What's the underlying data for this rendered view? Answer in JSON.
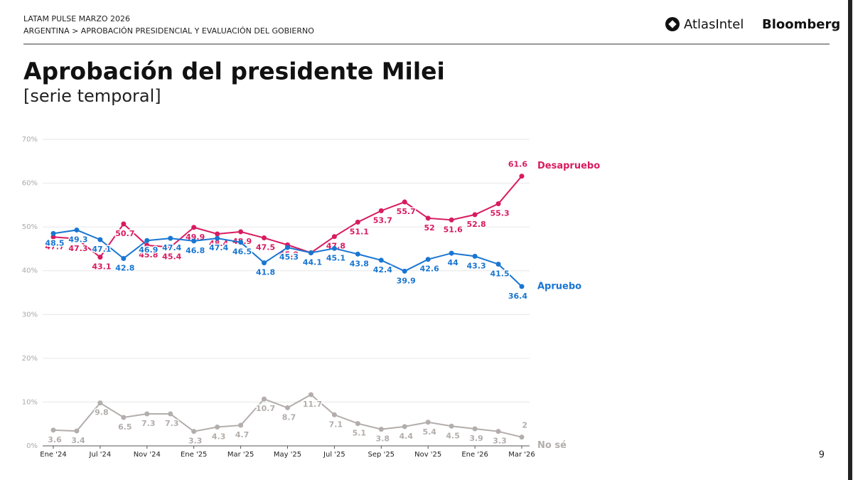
{
  "header": {
    "line1": "LATAM PULSE MARZO 2026",
    "line2": "ARGENTINA > APROBACIÓN PRESIDENCIAL Y EVALUACIÓN DEL GOBIERNO",
    "logo1": "AtlasIntel",
    "logo2": "Bloomberg"
  },
  "page_number": "9",
  "chart_data": {
    "type": "line",
    "title": "Aprobación del presidente Milei",
    "subtitle": "[serie temporal]",
    "categories": [
      "Ene '24",
      null,
      "Jul '24",
      null,
      "Nov '24",
      null,
      "Ene '25",
      null,
      "Mar '25",
      null,
      "May '25",
      null,
      "Jul '25",
      null,
      "Sep '25",
      null,
      "Nov '25",
      null,
      "Ene '26",
      null,
      "Mar '26"
    ],
    "series": [
      {
        "name": "Desapruebo",
        "color": "#d81b60",
        "values": [
          47.7,
          47.3,
          43.1,
          50.7,
          45.8,
          45.4,
          49.9,
          48.4,
          48.9,
          47.5,
          45.9,
          44.1,
          47.8,
          51.1,
          53.7,
          55.7,
          52,
          51.6,
          52.8,
          55.3,
          61.6
        ]
      },
      {
        "name": "Apruebo",
        "color": "#1976d2",
        "values": [
          48.5,
          49.3,
          47.1,
          42.8,
          46.9,
          47.4,
          46.8,
          47.4,
          46.5,
          41.8,
          45.3,
          44.1,
          45.1,
          43.8,
          42.4,
          39.9,
          42.6,
          44,
          43.3,
          41.5,
          36.4
        ]
      },
      {
        "name": "No sé",
        "color": "#b3adab",
        "values": [
          3.6,
          3.4,
          9.8,
          6.5,
          7.3,
          7.3,
          3.3,
          4.3,
          4.7,
          10.7,
          8.7,
          11.7,
          7.1,
          5.1,
          3.8,
          4.4,
          5.4,
          4.5,
          3.9,
          3.3,
          2
        ]
      }
    ],
    "value_suffix_labels": true,
    "ylim": [
      0,
      70
    ],
    "yticks": [
      {
        "value": 0,
        "label": "0%"
      },
      {
        "value": 10,
        "label": "10%"
      },
      {
        "value": 20,
        "label": "20%"
      },
      {
        "value": 30,
        "label": "30%"
      },
      {
        "value": 40,
        "label": "40%"
      },
      {
        "value": 50,
        "label": "50%"
      },
      {
        "value": 60,
        "label": "60%"
      },
      {
        "value": 70,
        "label": "70%"
      }
    ],
    "grid": true
  }
}
